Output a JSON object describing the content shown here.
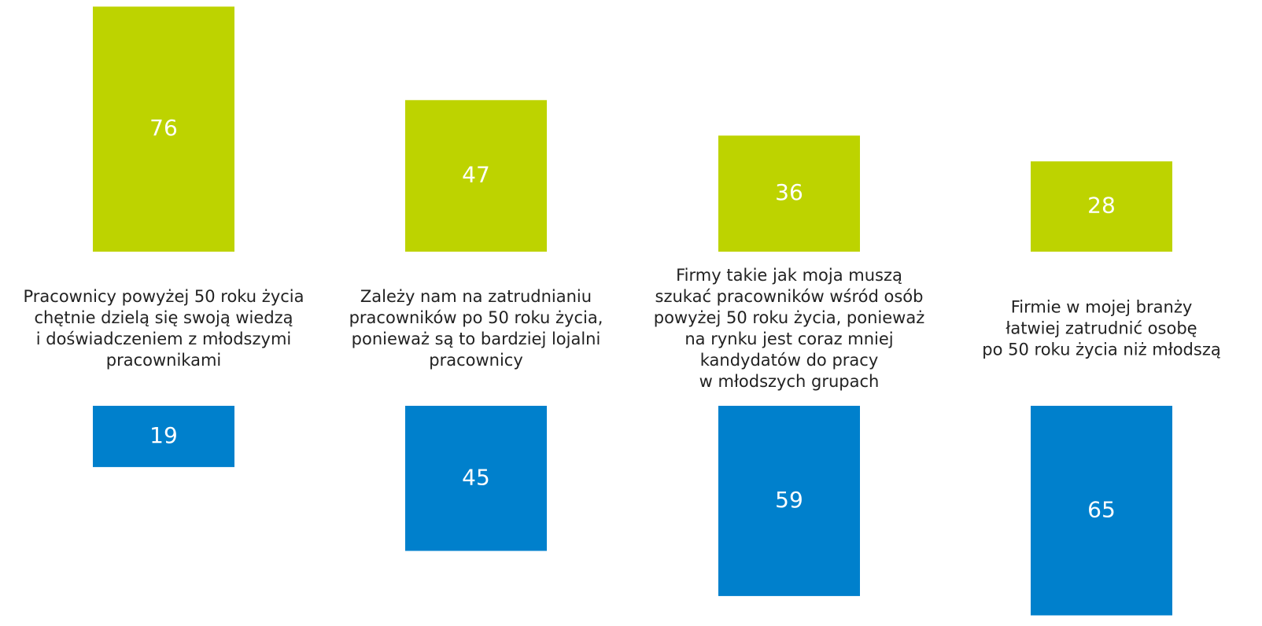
{
  "chart_data": {
    "type": "diverging-bar",
    "categories": [
      "Pracownicy powyżej 50 roku życia\nchętnie dzielą się swoją wiedzą\ni doświadczeniem z młodszymi\npracownikami",
      "Zależy nam na zatrudnianiu\npracowników po 50 roku życia,\nponieważ są to bardziej lojalni\npracownicy",
      "Firmy takie jak moja muszą\nszukać pracowników wśród osób\npowyżej 50 roku życia, ponieważ\nna rynku jest coraz mniej\nkandydatów do pracy\nw młodszych grupach",
      "Firmie w mojej branży\nłatwiej zatrudnić osobę\npo 50 roku życia niż młodszą"
    ],
    "series": [
      {
        "color": "#bdd300",
        "values": [
          76,
          47,
          36,
          28
        ]
      },
      {
        "color": "#0080cc",
        "values": [
          19,
          45,
          59,
          65
        ]
      }
    ]
  }
}
